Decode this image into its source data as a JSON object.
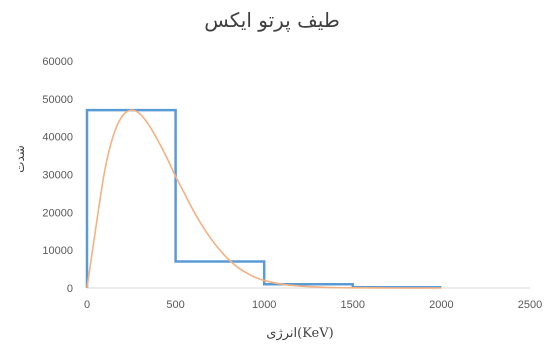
{
  "chart_data": {
    "type": "line",
    "title": "طیف پرتو ایکس",
    "xlabel": "انرژی(KeV)",
    "ylabel": "شدت",
    "xlim": [
      0,
      2500
    ],
    "ylim": [
      0,
      60000
    ],
    "xticks": [
      0,
      500,
      1000,
      1500,
      2000,
      2500
    ],
    "yticks": [
      0,
      10000,
      20000,
      30000,
      40000,
      50000,
      60000
    ],
    "grid": false,
    "legend": "none",
    "series": [
      {
        "color": "#5b9bd5",
        "style": "step",
        "points": [
          [
            0,
            0
          ],
          [
            0,
            47000
          ],
          [
            500,
            47000
          ],
          [
            500,
            7000
          ],
          [
            1000,
            7000
          ],
          [
            1000,
            1000
          ],
          [
            1500,
            1000
          ],
          [
            1500,
            200
          ],
          [
            2000,
            200
          ]
        ]
      },
      {
        "color": "#f4b183",
        "style": "smooth",
        "points": [
          [
            0,
            0
          ],
          [
            50,
            16000
          ],
          [
            100,
            31000
          ],
          [
            150,
            40500
          ],
          [
            200,
            45500
          ],
          [
            250,
            47000
          ],
          [
            300,
            46000
          ],
          [
            350,
            43000
          ],
          [
            400,
            39000
          ],
          [
            450,
            34500
          ],
          [
            500,
            29500
          ],
          [
            550,
            25000
          ],
          [
            600,
            20500
          ],
          [
            650,
            16500
          ],
          [
            700,
            13000
          ],
          [
            750,
            10000
          ],
          [
            800,
            7500
          ],
          [
            850,
            5500
          ],
          [
            900,
            4000
          ],
          [
            950,
            2800
          ],
          [
            1000,
            2000
          ],
          [
            1100,
            1000
          ],
          [
            1200,
            500
          ],
          [
            1300,
            250
          ],
          [
            1400,
            100
          ],
          [
            1500,
            50
          ],
          [
            1700,
            0
          ],
          [
            2000,
            0
          ]
        ]
      }
    ]
  }
}
